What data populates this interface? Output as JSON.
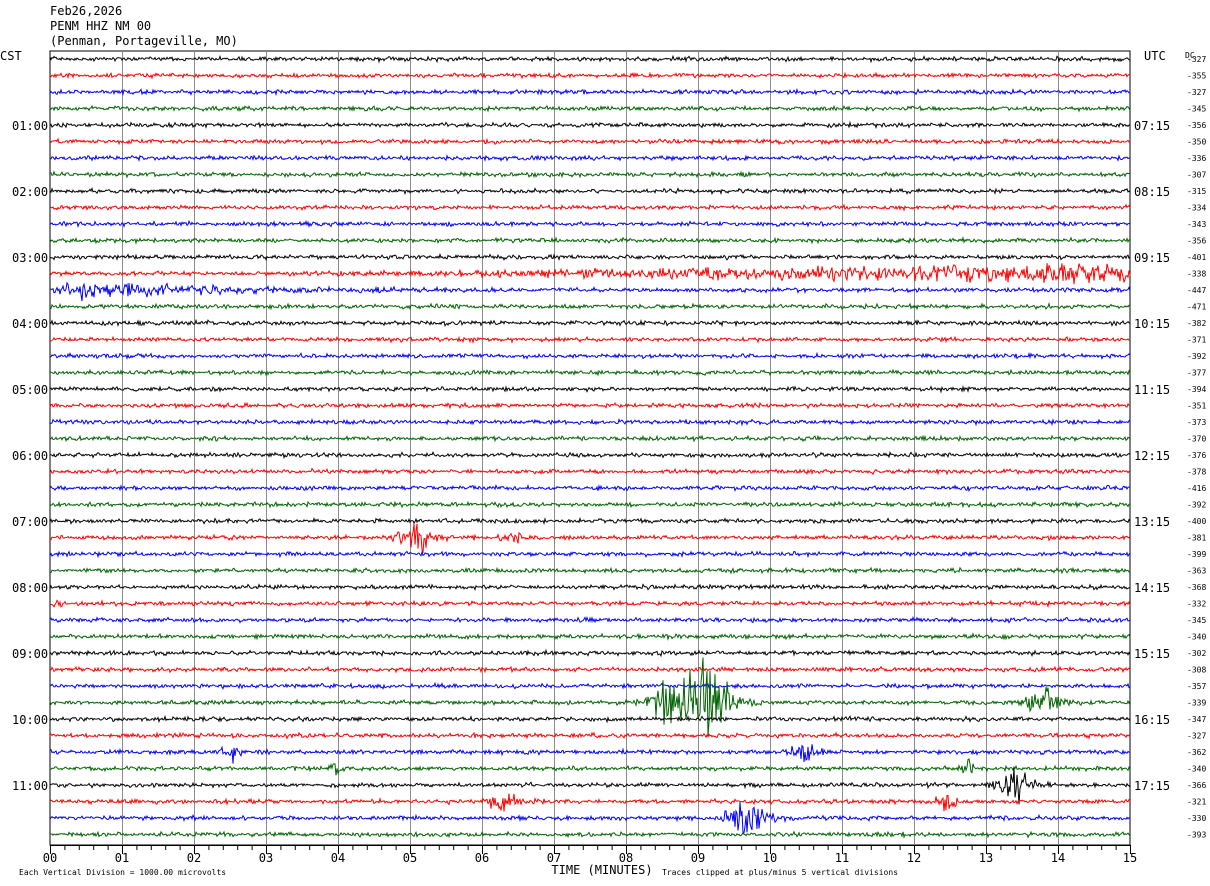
{
  "header": {
    "date": "Feb26,2026",
    "station": "PENM HHZ NM 00",
    "location": "(Penman, Portageville, MO)"
  },
  "labels": {
    "left_tz": "CST",
    "right_tz": "UTC",
    "dc": "DC",
    "x_axis_title": "TIME (MINUTES)",
    "scale_note": "Each Vertical Division = 1000.00 microvolts",
    "clip_note": "Traces clipped at plus/minus 5 vertical divisions"
  },
  "chart_data": {
    "type": "line",
    "title": "PENM HHZ NM 00",
    "xlabel": "TIME (MINUTES)",
    "xlim": [
      0,
      15
    ],
    "x_ticks": [
      "00",
      "01",
      "02",
      "03",
      "04",
      "05",
      "06",
      "07",
      "08",
      "09",
      "10",
      "11",
      "12",
      "13",
      "14",
      "15"
    ],
    "left_hour_labels": [
      "01:00",
      "02:00",
      "03:00",
      "04:00",
      "05:00",
      "06:00",
      "07:00",
      "08:00",
      "09:00",
      "10:00",
      "11:00"
    ],
    "right_hour_labels": [
      "07:15",
      "08:15",
      "09:15",
      "10:15",
      "11:15",
      "12:15",
      "13:15",
      "14:15",
      "15:15",
      "16:15",
      "17:15"
    ],
    "trace_colors": [
      "#000000",
      "#ff0000",
      "#0000ff",
      "#006400"
    ],
    "dc_offsets": [
      "-327",
      "-355",
      "-327",
      "-345",
      "-356",
      "-350",
      "-336",
      "-307",
      "-315",
      "-334",
      "-343",
      "-356",
      "-401",
      "-338",
      "-447",
      "-471",
      "-382",
      "-371",
      "-392",
      "-377",
      "-394",
      "-351",
      "-373",
      "-370",
      "-376",
      "-378",
      "-416",
      "-392",
      "-400",
      "-381",
      "-399",
      "-363",
      "-368",
      "-332",
      "-345",
      "-340",
      "-302",
      "-308",
      "-357",
      "-339",
      "-347",
      "-327",
      "-362",
      "-340",
      "-366",
      "-321",
      "-330",
      "-393"
    ],
    "noise_level": 1.4,
    "events": [
      {
        "trace": 13,
        "start_min": 3.0,
        "end_min": 15.0,
        "peak_min": 15.0,
        "amp": 6
      },
      {
        "trace": 14,
        "start_min": 0.0,
        "end_min": 6.5,
        "peak_min": 0.2,
        "amp": 6
      },
      {
        "trace": 29,
        "start_min": 4.6,
        "end_min": 5.6,
        "peak_min": 5.15,
        "amp": 11
      },
      {
        "trace": 29,
        "start_min": 6.2,
        "end_min": 6.9,
        "peak_min": 6.45,
        "amp": 7
      },
      {
        "trace": 33,
        "start_min": 0.0,
        "end_min": 0.3,
        "peak_min": 0.05,
        "amp": 4
      },
      {
        "trace": 39,
        "start_min": 8.1,
        "end_min": 9.9,
        "peak_min": 9.15,
        "amp": 40
      },
      {
        "trace": 39,
        "start_min": 13.4,
        "end_min": 14.4,
        "peak_min": 13.85,
        "amp": 12
      },
      {
        "trace": 42,
        "start_min": 2.3,
        "end_min": 2.8,
        "peak_min": 2.55,
        "amp": 7
      },
      {
        "trace": 42,
        "start_min": 10.2,
        "end_min": 11.0,
        "peak_min": 10.5,
        "amp": 9
      },
      {
        "trace": 43,
        "start_min": 3.8,
        "end_min": 4.3,
        "peak_min": 3.95,
        "amp": 5
      },
      {
        "trace": 43,
        "start_min": 12.6,
        "end_min": 13.0,
        "peak_min": 12.75,
        "amp": 5
      },
      {
        "trace": 44,
        "start_min": 12.9,
        "end_min": 14.0,
        "peak_min": 13.45,
        "amp": 12
      },
      {
        "trace": 45,
        "start_min": 5.9,
        "end_min": 6.9,
        "peak_min": 6.35,
        "amp": 6
      },
      {
        "trace": 45,
        "start_min": 12.2,
        "end_min": 12.8,
        "peak_min": 12.45,
        "amp": 6
      },
      {
        "trace": 46,
        "start_min": 9.2,
        "end_min": 10.4,
        "peak_min": 9.75,
        "amp": 15
      }
    ]
  }
}
